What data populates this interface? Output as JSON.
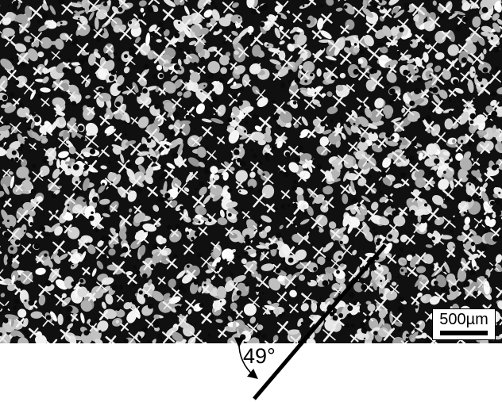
{
  "image": {
    "description_type": "micrograph",
    "background_color": "#101010",
    "dendrite_color": "#f0f0f0"
  },
  "scale_bar": {
    "label": "500µm"
  },
  "angle_annotation": {
    "label": "49°",
    "line_color": "#000000"
  }
}
